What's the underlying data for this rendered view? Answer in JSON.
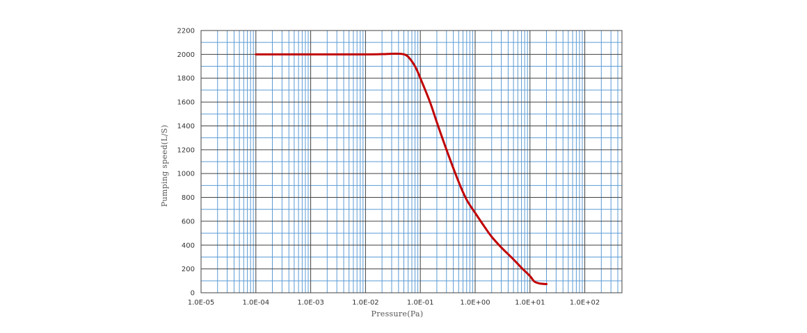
{
  "chart_data": {
    "type": "line",
    "title": "",
    "xlabel": "Pressure(Pa)",
    "ylabel": "Pumping speed(L/S)",
    "x_scale": "log",
    "xlim": [
      "1.0E-05",
      "5.0E+02"
    ],
    "ylim": [
      0,
      2200
    ],
    "x_ticks": [
      "1.0E-05",
      "1.0E-04",
      "1.0E-03",
      "1.0E-02",
      "1.0E-01",
      "1.0E+00",
      "1.0E+01",
      "1.0E+02"
    ],
    "y_ticks": [
      "0",
      "200",
      "400",
      "600",
      "800",
      "1000",
      "1200",
      "1400",
      "1600",
      "1800",
      "2000",
      "2200"
    ],
    "grid": true,
    "legend": "none",
    "series": [
      {
        "color": "#c00000",
        "x": [
          0.0001,
          0.001,
          0.01,
          0.02,
          0.03,
          0.04,
          0.05,
          0.06,
          0.08,
          0.1,
          0.15,
          0.2,
          0.3,
          0.5,
          0.7,
          1,
          1.5,
          2,
          3,
          5,
          7,
          10,
          12,
          15,
          20
        ],
        "y": [
          2000,
          2000,
          2000,
          2002,
          2005,
          2005,
          2000,
          1980,
          1900,
          1800,
          1600,
          1430,
          1200,
          930,
          780,
          670,
          550,
          470,
          380,
          280,
          210,
          140,
          95,
          78,
          73
        ]
      }
    ],
    "colors": {
      "major_grid": "#404040",
      "minor_grid": "#5b9bd5",
      "line": "#c00000"
    }
  }
}
